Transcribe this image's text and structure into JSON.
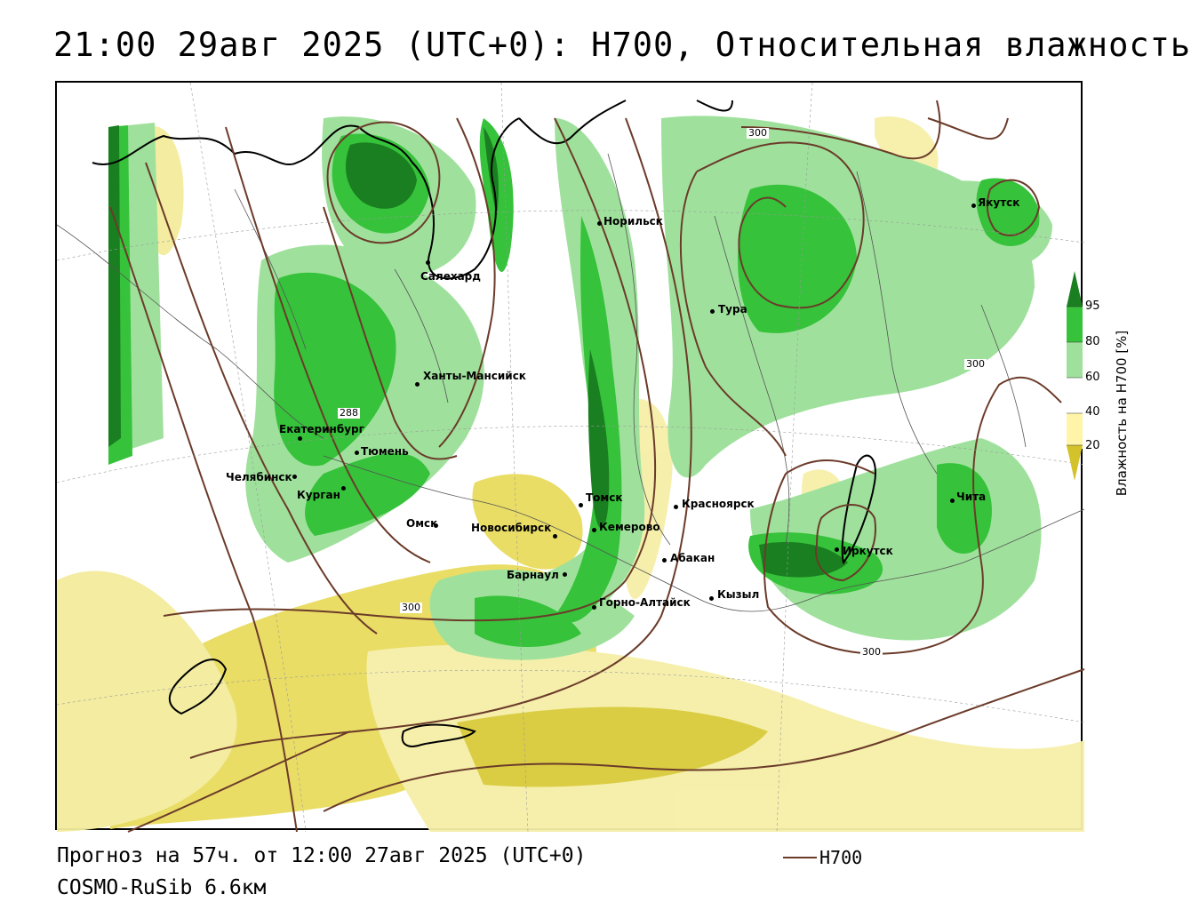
{
  "header": {
    "title": "21:00 29авг 2025 (UTC+0): H700, Относительная влажность"
  },
  "footer": {
    "forecast": "Прогноз на 57ч. от 12:00 27авг 2025 (UTC+0)",
    "model": "COSMO-RuSib 6.6км",
    "line_legend": "H700",
    "line_color": "#6b3b2a"
  },
  "colorbar": {
    "title": "Влажность на H700 [%]",
    "ticks": [
      "95",
      "80",
      "60",
      "40",
      "20"
    ],
    "colors": [
      "#1a7f20",
      "#36c23a",
      "#9fe19c",
      "#ffffff",
      "#fff4a8",
      "#d4c22a"
    ]
  },
  "isolines": {
    "labels": [
      "300",
      "300",
      "288",
      "300",
      "300"
    ]
  },
  "cities": [
    {
      "name": "Норильск"
    },
    {
      "name": "Салехард"
    },
    {
      "name": "Тура"
    },
    {
      "name": "Якутск"
    },
    {
      "name": "Ханты-Мансийск"
    },
    {
      "name": "Екатеринбург"
    },
    {
      "name": "Тюмень"
    },
    {
      "name": "Челябинск"
    },
    {
      "name": "Курган"
    },
    {
      "name": "Омск"
    },
    {
      "name": "Новосибирск"
    },
    {
      "name": "Томск"
    },
    {
      "name": "Кемерово"
    },
    {
      "name": "Красноярск"
    },
    {
      "name": "Барнаул"
    },
    {
      "name": "Абакан"
    },
    {
      "name": "Горно-Алтайск"
    },
    {
      "name": "Кызыл"
    },
    {
      "name": "Иркутск"
    },
    {
      "name": "Чита"
    }
  ]
}
